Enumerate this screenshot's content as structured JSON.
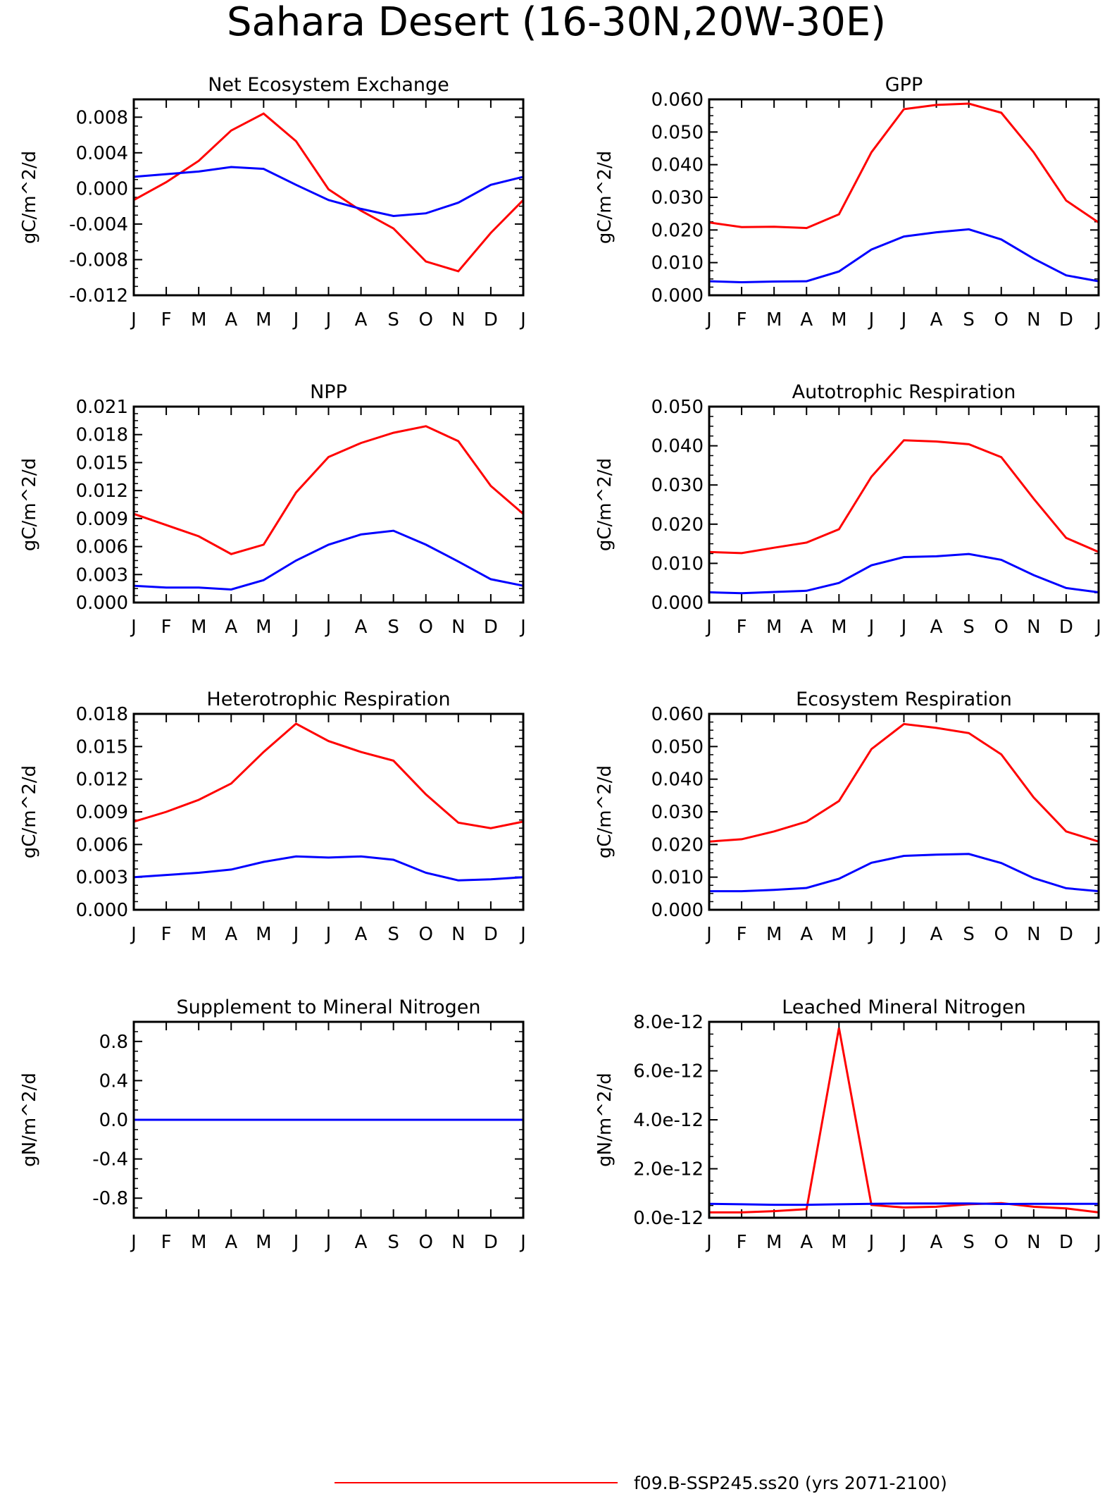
{
  "title": "Sahara Desert (16-30N,20W-30E)",
  "legend": {
    "entries": [
      {
        "label": "f09.B-SSP245.ss20 (yrs 2071-2100)",
        "color": "#ff0000"
      }
    ]
  },
  "colors": {
    "series_red": "#ff0000",
    "series_blue": "#0000ff",
    "axis": "#000000"
  },
  "chart_data": [
    {
      "type": "line",
      "title": "Net Ecosystem Exchange",
      "ylabel": "gC/m^2/d",
      "categories": [
        "J",
        "F",
        "M",
        "A",
        "M",
        "J",
        "J",
        "A",
        "S",
        "O",
        "N",
        "D",
        "J"
      ],
      "ylim": [
        -0.012,
        0.01
      ],
      "yticks": [
        -0.012,
        -0.008,
        -0.004,
        0.0,
        0.004,
        0.008
      ],
      "ytick_labels": [
        "-0.012",
        "-0.008",
        "-0.004",
        "0.000",
        "0.004",
        "0.008"
      ],
      "series": [
        {
          "color": "#ff0000",
          "values": [
            -0.0013,
            0.0007,
            0.0031,
            0.0065,
            0.0084,
            0.0053,
            -0.0001,
            -0.0025,
            -0.0045,
            -0.0082,
            -0.0093,
            -0.005,
            -0.0013
          ]
        },
        {
          "color": "#0000ff",
          "values": [
            0.0013,
            0.0016,
            0.0019,
            0.0024,
            0.0022,
            0.0004,
            -0.0013,
            -0.0023,
            -0.0031,
            -0.0028,
            -0.0016,
            0.0004,
            0.0013
          ]
        }
      ]
    },
    {
      "type": "line",
      "title": "GPP",
      "ylabel": "gC/m^2/d",
      "categories": [
        "J",
        "F",
        "M",
        "A",
        "M",
        "J",
        "J",
        "A",
        "S",
        "O",
        "N",
        "D",
        "J"
      ],
      "ylim": [
        0.0,
        0.06
      ],
      "yticks": [
        0.0,
        0.01,
        0.02,
        0.03,
        0.04,
        0.05,
        0.06
      ],
      "ytick_labels": [
        "0.000",
        "0.010",
        "0.020",
        "0.030",
        "0.040",
        "0.050",
        "0.060"
      ],
      "series": [
        {
          "color": "#ff0000",
          "values": [
            0.0223,
            0.0209,
            0.021,
            0.0206,
            0.0248,
            0.0438,
            0.057,
            0.0583,
            0.0587,
            0.0559,
            0.0438,
            0.029,
            0.0223
          ]
        },
        {
          "color": "#0000ff",
          "values": [
            0.0043,
            0.004,
            0.0042,
            0.0043,
            0.0073,
            0.014,
            0.018,
            0.0193,
            0.0202,
            0.0171,
            0.0112,
            0.0061,
            0.0043
          ]
        }
      ]
    },
    {
      "type": "line",
      "title": "NPP",
      "ylabel": "gC/m^2/d",
      "categories": [
        "J",
        "F",
        "M",
        "A",
        "M",
        "J",
        "J",
        "A",
        "S",
        "O",
        "N",
        "D",
        "J"
      ],
      "ylim": [
        0.0,
        0.021
      ],
      "yticks": [
        0.0,
        0.003,
        0.006,
        0.009,
        0.012,
        0.015,
        0.018,
        0.021
      ],
      "ytick_labels": [
        "0.000",
        "0.003",
        "0.006",
        "0.009",
        "0.012",
        "0.015",
        "0.018",
        "0.021"
      ],
      "series": [
        {
          "color": "#ff0000",
          "values": [
            0.0095,
            0.0083,
            0.0071,
            0.0052,
            0.0062,
            0.0118,
            0.0156,
            0.0171,
            0.0182,
            0.0189,
            0.0173,
            0.0125,
            0.0095
          ]
        },
        {
          "color": "#0000ff",
          "values": [
            0.0018,
            0.0016,
            0.0016,
            0.0014,
            0.0024,
            0.0045,
            0.0062,
            0.0073,
            0.0077,
            0.0062,
            0.0044,
            0.0025,
            0.0018
          ]
        }
      ]
    },
    {
      "type": "line",
      "title": "Autotrophic Respiration",
      "ylabel": "gC/m^2/d",
      "categories": [
        "J",
        "F",
        "M",
        "A",
        "M",
        "J",
        "J",
        "A",
        "S",
        "O",
        "N",
        "D",
        "J"
      ],
      "ylim": [
        0.0,
        0.05
      ],
      "yticks": [
        0.0,
        0.01,
        0.02,
        0.03,
        0.04,
        0.05
      ],
      "ytick_labels": [
        "0.000",
        "0.010",
        "0.020",
        "0.030",
        "0.040",
        "0.050"
      ],
      "series": [
        {
          "color": "#ff0000",
          "values": [
            0.0129,
            0.0126,
            0.014,
            0.0153,
            0.0187,
            0.0321,
            0.0414,
            0.0411,
            0.0404,
            0.0371,
            0.0265,
            0.0165,
            0.0129
          ]
        },
        {
          "color": "#0000ff",
          "values": [
            0.0026,
            0.0024,
            0.0027,
            0.003,
            0.005,
            0.0095,
            0.0116,
            0.0118,
            0.0124,
            0.0109,
            0.007,
            0.0037,
            0.0026
          ]
        }
      ]
    },
    {
      "type": "line",
      "title": "Heterotrophic Respiration",
      "ylabel": "gC/m^2/d",
      "categories": [
        "J",
        "F",
        "M",
        "A",
        "M",
        "J",
        "J",
        "A",
        "S",
        "O",
        "N",
        "D",
        "J"
      ],
      "ylim": [
        0.0,
        0.018
      ],
      "yticks": [
        0.0,
        0.003,
        0.006,
        0.009,
        0.012,
        0.015,
        0.018
      ],
      "ytick_labels": [
        "0.000",
        "0.003",
        "0.006",
        "0.009",
        "0.012",
        "0.015",
        "0.018"
      ],
      "series": [
        {
          "color": "#ff0000",
          "values": [
            0.0081,
            0.009,
            0.0101,
            0.0116,
            0.0145,
            0.0171,
            0.0155,
            0.0145,
            0.0137,
            0.0106,
            0.008,
            0.0075,
            0.0081
          ]
        },
        {
          "color": "#0000ff",
          "values": [
            0.003,
            0.0032,
            0.0034,
            0.0037,
            0.0044,
            0.0049,
            0.0048,
            0.0049,
            0.0046,
            0.0034,
            0.0027,
            0.0028,
            0.003
          ]
        }
      ]
    },
    {
      "type": "line",
      "title": "Ecosystem Respiration",
      "ylabel": "gC/m^2/d",
      "categories": [
        "J",
        "F",
        "M",
        "A",
        "M",
        "J",
        "J",
        "A",
        "S",
        "O",
        "N",
        "D",
        "J"
      ],
      "ylim": [
        0.0,
        0.06
      ],
      "yticks": [
        0.0,
        0.01,
        0.02,
        0.03,
        0.04,
        0.05,
        0.06
      ],
      "ytick_labels": [
        "0.000",
        "0.010",
        "0.020",
        "0.030",
        "0.040",
        "0.050",
        "0.060"
      ],
      "series": [
        {
          "color": "#ff0000",
          "values": [
            0.0209,
            0.0216,
            0.024,
            0.027,
            0.0333,
            0.0492,
            0.0569,
            0.0557,
            0.0541,
            0.0476,
            0.0344,
            0.024,
            0.0209
          ]
        },
        {
          "color": "#0000ff",
          "values": [
            0.0057,
            0.0057,
            0.0061,
            0.0067,
            0.0095,
            0.0144,
            0.0165,
            0.0169,
            0.0171,
            0.0143,
            0.0097,
            0.0066,
            0.0057
          ]
        }
      ]
    },
    {
      "type": "line",
      "title": "Supplement to Mineral Nitrogen",
      "ylabel": "gN/m^2/d",
      "categories": [
        "J",
        "F",
        "M",
        "A",
        "M",
        "J",
        "J",
        "A",
        "S",
        "O",
        "N",
        "D",
        "J"
      ],
      "ylim": [
        -1.0,
        1.0
      ],
      "yticks": [
        -0.8,
        -0.4,
        0.0,
        0.4,
        0.8
      ],
      "ytick_labels": [
        "-0.8",
        "-0.4",
        "0.0",
        "0.4",
        "0.8"
      ],
      "series": [
        {
          "color": "#ff0000",
          "values": [
            0,
            0,
            0,
            0,
            0,
            0,
            0,
            0,
            0,
            0,
            0,
            0,
            0
          ]
        },
        {
          "color": "#0000ff",
          "values": [
            0,
            0,
            0,
            0,
            0,
            0,
            0,
            0,
            0,
            0,
            0,
            0,
            0
          ]
        }
      ]
    },
    {
      "type": "line",
      "title": "Leached Mineral Nitrogen",
      "ylabel": "gN/m^2/d",
      "categories": [
        "J",
        "F",
        "M",
        "A",
        "M",
        "J",
        "J",
        "A",
        "S",
        "O",
        "N",
        "D",
        "J"
      ],
      "ylim": [
        0.0,
        8e-12
      ],
      "yticks": [
        0.0,
        2e-12,
        4e-12,
        6e-12,
        8e-12
      ],
      "ytick_labels": [
        "0.0e-12",
        "2.0e-12",
        "4.0e-12",
        "6.0e-12",
        "8.0e-12"
      ],
      "series": [
        {
          "color": "#ff0000",
          "values": [
            2.2e-13,
            2.2e-13,
            2.7e-13,
            3.5e-13,
            7.75e-12,
            5.2e-13,
            4.2e-13,
            4.5e-13,
            5.5e-13,
            6e-13,
            4.5e-13,
            3.8e-13,
            2.2e-13
          ]
        },
        {
          "color": "#0000ff",
          "values": [
            5.7e-13,
            5.5e-13,
            5.3e-13,
            5.3e-13,
            5.5e-13,
            5.7e-13,
            5.8e-13,
            5.8e-13,
            5.8e-13,
            5.6e-13,
            5.7e-13,
            5.7e-13,
            5.7e-13
          ]
        }
      ]
    }
  ]
}
